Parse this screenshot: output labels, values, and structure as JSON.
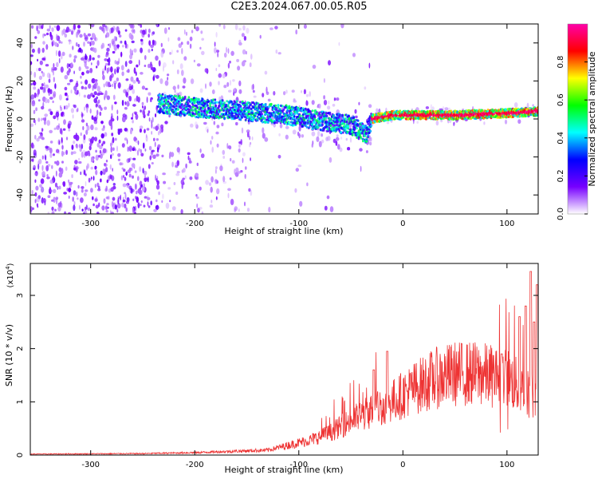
{
  "title": "C2E3.2024.067.00.05.R05",
  "chart_data": [
    {
      "type": "heatmap",
      "xlabel": "Height of straight line (km)",
      "ylabel": "Frequency (Hz)",
      "xlim": [
        -358,
        130
      ],
      "ylim": [
        -50,
        50
      ],
      "x_ticks": [
        -300,
        -200,
        -100,
        0,
        100
      ],
      "y_ticks": [
        -40,
        -20,
        0,
        20,
        40
      ],
      "colorbar": {
        "label": "Normalized spectral amplitude",
        "range": [
          0.0,
          1.0
        ],
        "ticks": [
          "0.0",
          "0.2",
          "0.4",
          "0.6",
          "0.8"
        ],
        "colors": [
          "#ffffff",
          "#7700ff",
          "#0000ff",
          "#00ffff",
          "#00ff00",
          "#ffff00",
          "#ff0000",
          "#ff00aa"
        ]
      },
      "signal_ridge": [
        {
          "x": -230,
          "freq": 8
        },
        {
          "x": -200,
          "freq": 6
        },
        {
          "x": -150,
          "freq": 4
        },
        {
          "x": -110,
          "freq": 2
        },
        {
          "x": -80,
          "freq": -1
        },
        {
          "x": -50,
          "freq": -3
        },
        {
          "x": -35,
          "freq": -8
        },
        {
          "x": -30,
          "freq": 0
        },
        {
          "x": -10,
          "freq": 2
        },
        {
          "x": 0,
          "freq": 2
        },
        {
          "x": 50,
          "freq": 2
        },
        {
          "x": 100,
          "freq": 3
        },
        {
          "x": 130,
          "freq": 4
        }
      ]
    },
    {
      "type": "line",
      "xlabel": "Height of straight line (km)",
      "ylabel": "SNR (10 * v/v)",
      "y_multiplier": "(x10",
      "y_multiplier_exp": "4",
      "y_multiplier_close": ")",
      "xlim": [
        -358,
        130
      ],
      "ylim": [
        0,
        3.6
      ],
      "x_ticks": [
        -300,
        -200,
        -100,
        0,
        100
      ],
      "y_ticks": [
        0,
        1,
        2,
        3
      ],
      "color": "#ee3333",
      "envelope": [
        {
          "x": -358,
          "y": 0.02
        },
        {
          "x": -250,
          "y": 0.03
        },
        {
          "x": -200,
          "y": 0.05
        },
        {
          "x": -130,
          "y": 0.1
        },
        {
          "x": -110,
          "y": 0.2
        },
        {
          "x": -90,
          "y": 0.3
        },
        {
          "x": -70,
          "y": 0.45
        },
        {
          "x": -50,
          "y": 0.7
        },
        {
          "x": -30,
          "y": 0.9
        },
        {
          "x": -10,
          "y": 1.1
        },
        {
          "x": 10,
          "y": 1.35
        },
        {
          "x": 30,
          "y": 1.55
        },
        {
          "x": 50,
          "y": 1.65
        },
        {
          "x": 70,
          "y": 1.65
        },
        {
          "x": 90,
          "y": 1.6
        },
        {
          "x": 105,
          "y": 1.5
        },
        {
          "x": 115,
          "y": 1.3
        },
        {
          "x": 125,
          "y": 1.2
        },
        {
          "x": 130,
          "y": 1.2
        }
      ],
      "spikes": [
        {
          "x": -28,
          "y": 1.6
        },
        {
          "x": -15,
          "y": 1.95
        },
        {
          "x": 95,
          "y": 1.9
        },
        {
          "x": 112,
          "y": 2.6
        },
        {
          "x": 118,
          "y": 2.8
        },
        {
          "x": 123,
          "y": 3.45
        },
        {
          "x": 126,
          "y": 2.5
        },
        {
          "x": 129,
          "y": 3.2
        }
      ]
    }
  ]
}
